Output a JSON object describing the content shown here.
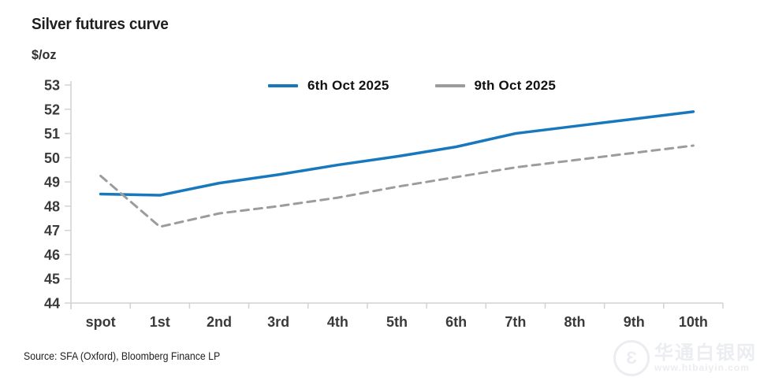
{
  "title": "Silver futures curve",
  "y_unit_label": "$/oz",
  "source": "Source: SFA (Oxford), Bloomberg Finance LP",
  "watermark": {
    "cn": "华通白银网",
    "url": "www.htbaiyin.com",
    "logo_glyph": "Ɛ"
  },
  "colors": {
    "series_blue": "#1878be",
    "series_gray": "#9c9c9c",
    "axis": "#d2d2d2",
    "tick_text": "#3a3a3a",
    "title_text": "#1f1f1f"
  },
  "chart_data": {
    "type": "line",
    "title": "Silver futures curve",
    "ylabel": "$/oz",
    "xlabel": "",
    "categories": [
      "spot",
      "1st",
      "2nd",
      "3rd",
      "4th",
      "5th",
      "6th",
      "7th",
      "8th",
      "9th",
      "10th"
    ],
    "series": [
      {
        "name": "6th Oct 2025",
        "color": "#1878be",
        "style": "solid",
        "width": 3.5,
        "values": [
          48.5,
          48.45,
          48.95,
          49.3,
          49.7,
          50.05,
          50.45,
          51.0,
          51.3,
          51.6,
          51.9
        ]
      },
      {
        "name": "9th Oct 2025",
        "color": "#9c9c9c",
        "style": "dashed",
        "width": 3,
        "dash": "10 7",
        "values": [
          49.25,
          47.15,
          47.7,
          48.0,
          48.35,
          48.8,
          49.2,
          49.6,
          49.9,
          50.2,
          50.5
        ]
      }
    ],
    "ylim": [
      44,
      53
    ],
    "yticks": [
      44,
      45,
      46,
      47,
      48,
      49,
      50,
      51,
      52,
      53
    ],
    "grid": false,
    "legend_position": "top"
  }
}
